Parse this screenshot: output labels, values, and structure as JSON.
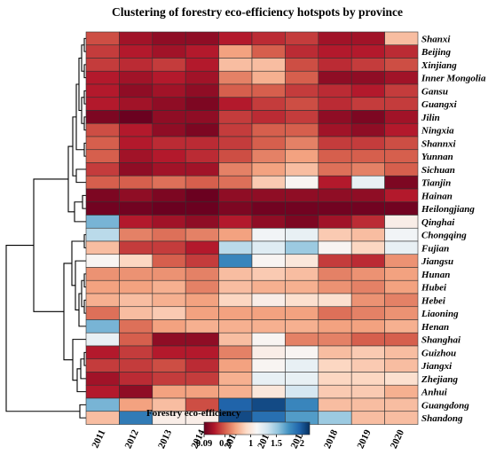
{
  "chart_data": {
    "type": "heatmap",
    "title": "Clustering of forestry eco-efficiency hotspots by province",
    "columns": [
      "2011",
      "2012",
      "2013",
      "2014",
      "2015",
      "2016",
      "2017",
      "2018",
      "2019",
      "2020"
    ],
    "rows": [
      "Shanxi",
      "Beijing",
      "Xinjiang",
      "Inner Mongolia",
      "Gansu",
      "Guangxi",
      "Jilin",
      "Ningxia",
      "Shannxi",
      "Yunnan",
      "Sichuan",
      "Tianjin",
      "Hainan",
      "Heilongjiang",
      "Qinghai",
      "Chongqing",
      "Fujian",
      "Jiangsu",
      "Hunan",
      "Hubei",
      "Hebei",
      "Liaoning",
      "Henan",
      "Shanghai",
      "Guizhou",
      "Jiangxi",
      "Zhejiang",
      "Anhui",
      "Guangdong",
      "Shandong"
    ],
    "values": [
      [
        0.45,
        0.25,
        0.2,
        0.2,
        0.3,
        0.35,
        0.4,
        0.25,
        0.25,
        0.8
      ],
      [
        0.4,
        0.3,
        0.25,
        0.3,
        0.7,
        0.5,
        0.35,
        0.3,
        0.3,
        0.35
      ],
      [
        0.4,
        0.35,
        0.4,
        0.3,
        0.8,
        0.8,
        0.45,
        0.35,
        0.4,
        0.45
      ],
      [
        0.3,
        0.25,
        0.3,
        0.25,
        0.6,
        0.75,
        0.5,
        0.2,
        0.2,
        0.25
      ],
      [
        0.3,
        0.2,
        0.25,
        0.2,
        0.5,
        0.5,
        0.4,
        0.35,
        0.3,
        0.4
      ],
      [
        0.3,
        0.25,
        0.2,
        0.15,
        0.3,
        0.4,
        0.45,
        0.35,
        0.4,
        0.4
      ],
      [
        0.15,
        0.1,
        0.2,
        0.2,
        0.4,
        0.35,
        0.4,
        0.2,
        0.15,
        0.25
      ],
      [
        0.45,
        0.3,
        0.2,
        0.15,
        0.4,
        0.5,
        0.5,
        0.25,
        0.2,
        0.3
      ],
      [
        0.5,
        0.3,
        0.35,
        0.35,
        0.4,
        0.5,
        0.6,
        0.4,
        0.4,
        0.45
      ],
      [
        0.5,
        0.25,
        0.3,
        0.35,
        0.45,
        0.6,
        0.7,
        0.5,
        0.5,
        0.5
      ],
      [
        0.4,
        0.2,
        0.25,
        0.25,
        0.6,
        0.7,
        0.8,
        0.55,
        0.6,
        0.5
      ],
      [
        0.5,
        0.5,
        0.55,
        0.5,
        0.55,
        0.85,
        1.1,
        0.3,
        1.2,
        0.15
      ],
      [
        0.15,
        0.2,
        0.15,
        0.1,
        0.2,
        0.2,
        0.2,
        0.2,
        0.2,
        0.3
      ],
      [
        0.12,
        0.12,
        0.1,
        0.1,
        0.15,
        0.12,
        0.12,
        0.12,
        0.12,
        0.12
      ],
      [
        1.6,
        0.3,
        0.25,
        0.2,
        0.3,
        0.2,
        0.15,
        0.25,
        0.35,
        1.05
      ],
      [
        1.4,
        0.6,
        0.55,
        0.6,
        0.7,
        1.15,
        1.2,
        0.85,
        0.8,
        1.15
      ],
      [
        0.8,
        0.4,
        0.4,
        0.3,
        1.4,
        1.25,
        1.5,
        1.1,
        0.9,
        1.2
      ],
      [
        1.1,
        0.9,
        0.5,
        0.4,
        1.8,
        1.1,
        1.0,
        0.4,
        0.35,
        0.65
      ],
      [
        0.65,
        0.65,
        0.65,
        0.6,
        0.8,
        0.85,
        0.8,
        0.6,
        0.65,
        0.7
      ],
      [
        0.7,
        0.7,
        0.75,
        0.6,
        0.8,
        0.75,
        0.75,
        0.65,
        0.6,
        0.7
      ],
      [
        0.75,
        0.8,
        0.75,
        0.7,
        0.9,
        1.05,
        0.95,
        0.95,
        0.65,
        0.6
      ],
      [
        0.55,
        0.8,
        0.85,
        0.7,
        0.7,
        0.7,
        0.7,
        0.55,
        0.6,
        0.65
      ],
      [
        1.6,
        0.55,
        0.7,
        0.75,
        0.75,
        0.75,
        0.75,
        0.7,
        0.7,
        0.75
      ],
      [
        1.2,
        0.5,
        0.2,
        0.2,
        0.8,
        1.1,
        0.6,
        0.6,
        0.5,
        0.5
      ],
      [
        0.3,
        0.4,
        0.3,
        0.3,
        0.6,
        1.05,
        1.1,
        0.8,
        0.85,
        0.8
      ],
      [
        0.4,
        0.4,
        0.45,
        0.35,
        0.7,
        1.1,
        1.2,
        0.9,
        0.85,
        0.8
      ],
      [
        0.25,
        0.35,
        0.4,
        0.4,
        0.75,
        1.2,
        1.2,
        0.9,
        0.9,
        0.95
      ],
      [
        0.3,
        0.2,
        0.7,
        0.7,
        0.75,
        1.0,
        1.3,
        0.85,
        0.85,
        0.75
      ],
      [
        1.6,
        0.7,
        0.8,
        0.45,
        1.95,
        2.05,
        1.8,
        0.8,
        0.8,
        0.8
      ],
      [
        0.8,
        1.85,
        1.05,
        1.05,
        2.05,
        1.9,
        1.7,
        1.5,
        0.8,
        0.8
      ]
    ],
    "legend": {
      "title": "Forestry eco-efficiency",
      "ticks": [
        "0.09",
        "0.5",
        "1",
        "1.5",
        "2"
      ],
      "tick_values": [
        0.09,
        0.5,
        1,
        1.5,
        2
      ],
      "range": [
        0.09,
        2.15
      ]
    },
    "colorscale": [
      "#67001f",
      "#b2182b",
      "#d6604d",
      "#f4a582",
      "#fddbc7",
      "#f7f7f7",
      "#d1e5f0",
      "#92c5de",
      "#4393c3",
      "#2166ac",
      "#053061"
    ]
  }
}
